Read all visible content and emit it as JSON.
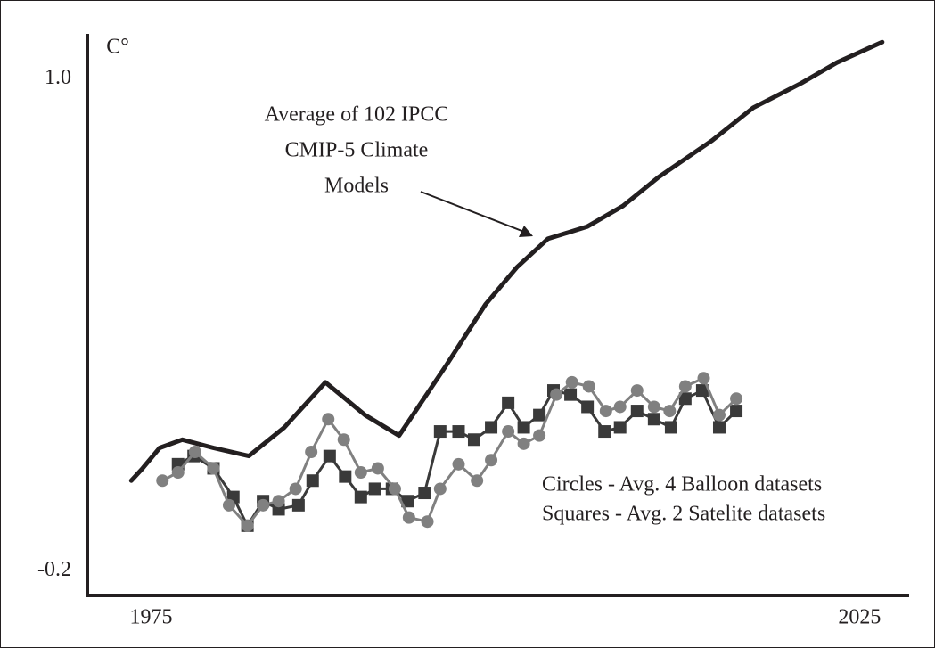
{
  "chart_data": {
    "type": "line",
    "y_label": "C°",
    "xlim": [
      1970.5,
      2028.5
    ],
    "ylim": [
      -0.26,
      1.11
    ],
    "xticks": [
      1975,
      2025
    ],
    "yticks": [
      {
        "value": 1,
        "label": "1.0"
      },
      -0.2
    ],
    "grid": false,
    "annotations": [
      "Average of 102 IPCC",
      "CMIP-5 Climate",
      "Models",
      "Circles - Avg. 4 Balloon datasets",
      "Squares - Avg. 2 Satelite datasets"
    ],
    "series": [
      {
        "color": "#231f20",
        "marker": "none",
        "x": [
          1973.6,
          1974.4,
          1975.6,
          1977.2,
          1979.4,
          1981.9,
          1984.4,
          1987.3,
          1990.1,
          1992.5,
          1995.8,
          1998.6,
          2000.8,
          2003.0,
          2005.8,
          2008.3,
          2010.8,
          2014.6,
          2017.5,
          2020.9,
          2023.4,
          2026.6
        ],
        "values": [
          0.02,
          0.05,
          0.1,
          0.12,
          0.1,
          0.08,
          0.15,
          0.26,
          0.18,
          0.13,
          0.3,
          0.45,
          0.54,
          0.61,
          0.64,
          0.69,
          0.76,
          0.85,
          0.93,
          0.99,
          1.04,
          1.09
        ]
      },
      {
        "color": "#3a3a3a",
        "marker": "square",
        "x": [
          1976.9,
          1978.0,
          1979.4,
          1980.8,
          1981.8,
          1982.9,
          1984.0,
          1985.4,
          1986.4,
          1987.6,
          1988.7,
          1989.8,
          1990.8,
          1992.0,
          1993.1,
          1994.3,
          1995.4,
          1996.7,
          1997.8,
          1999.0,
          2000.2,
          2001.3,
          2002.4,
          2003.4,
          2004.6,
          2005.8,
          2007.0,
          2008.1,
          2009.3,
          2010.5,
          2011.7,
          2012.7,
          2013.9,
          2015.1,
          2016.3
        ],
        "values": [
          0.06,
          0.08,
          0.05,
          -0.02,
          -0.09,
          -0.03,
          -0.05,
          -0.04,
          0.02,
          0.08,
          0.03,
          -0.02,
          0.0,
          0.0,
          -0.03,
          -0.01,
          0.14,
          0.14,
          0.12,
          0.15,
          0.21,
          0.15,
          0.18,
          0.24,
          0.23,
          0.2,
          0.14,
          0.15,
          0.19,
          0.17,
          0.15,
          0.22,
          0.24,
          0.15,
          0.19
        ]
      },
      {
        "color": "#808080",
        "marker": "circle",
        "x": [
          1975.8,
          1976.9,
          1978.1,
          1979.4,
          1980.5,
          1981.8,
          1982.9,
          1984.0,
          1985.2,
          1986.3,
          1987.5,
          1988.6,
          1989.8,
          1991.0,
          1992.2,
          1993.2,
          1994.5,
          1995.4,
          1996.7,
          1998.0,
          1999.0,
          2000.2,
          2001.3,
          2002.4,
          2003.6,
          2004.7,
          2005.9,
          2007.1,
          2008.1,
          2009.3,
          2010.5,
          2011.6,
          2012.7,
          2014.0,
          2015.1,
          2016.3
        ],
        "values": [
          0.02,
          0.04,
          0.09,
          0.05,
          -0.04,
          -0.09,
          -0.04,
          -0.03,
          0.0,
          0.09,
          0.17,
          0.12,
          0.04,
          0.05,
          0.0,
          -0.07,
          -0.08,
          0.0,
          0.06,
          0.02,
          0.07,
          0.14,
          0.11,
          0.13,
          0.23,
          0.26,
          0.25,
          0.19,
          0.2,
          0.24,
          0.2,
          0.19,
          0.25,
          0.27,
          0.18,
          0.22
        ]
      }
    ]
  }
}
